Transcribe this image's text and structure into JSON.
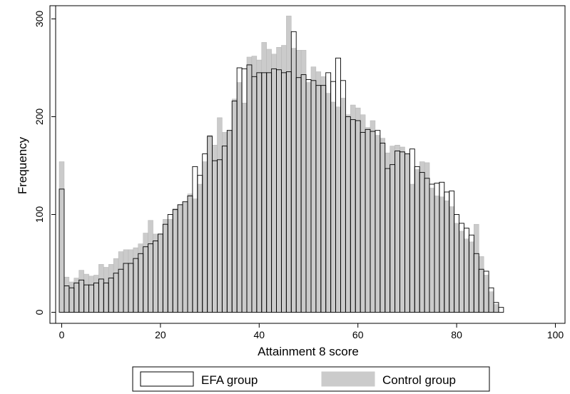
{
  "chart_data": {
    "type": "bar",
    "xlabel": "Attainment 8 score",
    "ylabel": "Frequency",
    "xlim": [
      -1,
      101
    ],
    "ylim": [
      0,
      305
    ],
    "xticks": [
      0,
      20,
      40,
      60,
      80,
      100
    ],
    "yticks": [
      0,
      100,
      200,
      300
    ],
    "bin_width": 1,
    "grid": false,
    "legend_position": "bottom",
    "x": [
      0,
      1,
      2,
      3,
      4,
      5,
      6,
      7,
      8,
      9,
      10,
      11,
      12,
      13,
      14,
      15,
      16,
      17,
      18,
      19,
      20,
      21,
      22,
      23,
      24,
      25,
      26,
      27,
      28,
      29,
      30,
      31,
      32,
      33,
      34,
      35,
      36,
      37,
      38,
      39,
      40,
      41,
      42,
      43,
      44,
      45,
      46,
      47,
      48,
      49,
      50,
      51,
      52,
      53,
      54,
      55,
      56,
      57,
      58,
      59,
      60,
      61,
      62,
      63,
      64,
      65,
      66,
      67,
      68,
      69,
      70,
      71,
      72,
      73,
      74,
      75,
      76,
      77,
      78,
      79,
      80,
      81,
      82,
      83,
      84,
      85,
      86,
      87,
      88,
      89
    ],
    "series": [
      {
        "name": "EFA group",
        "fill": "#ffffff",
        "values": [
          126,
          27,
          25,
          30,
          33,
          28,
          28,
          30,
          34,
          30,
          35,
          40,
          44,
          50,
          50,
          55,
          60,
          67,
          70,
          73,
          80,
          90,
          100,
          105,
          110,
          113,
          119,
          149,
          140,
          162,
          180,
          155,
          156,
          170,
          186,
          216,
          250,
          249,
          253,
          241,
          245,
          245,
          245,
          249,
          248,
          245,
          246,
          287,
          240,
          243,
          238,
          237,
          232,
          232,
          245,
          236,
          260,
          237,
          200,
          197,
          196,
          184,
          187,
          185,
          186,
          173,
          147,
          151,
          165,
          164,
          162,
          167,
          149,
          143,
          137,
          131,
          132,
          133,
          123,
          124,
          100,
          91,
          86,
          79,
          60,
          44,
          42,
          25,
          10,
          5
        ]
      },
      {
        "name": "Control group",
        "fill": "#cbcbcb",
        "values": [
          154,
          36,
          31,
          35,
          43,
          39,
          37,
          38,
          49,
          46,
          49,
          55,
          62,
          64,
          64,
          66,
          70,
          81,
          94,
          80,
          80,
          95,
          95,
          106,
          110,
          113,
          121,
          116,
          131,
          154,
          181,
          171,
          199,
          184,
          186,
          218,
          235,
          214,
          261,
          262,
          258,
          276,
          269,
          264,
          271,
          273,
          303,
          270,
          268,
          268,
          235,
          251,
          246,
          241,
          224,
          215,
          210,
          219,
          202,
          212,
          209,
          202,
          189,
          196,
          181,
          178,
          163,
          170,
          171,
          169,
          162,
          131,
          146,
          154,
          153,
          127,
          119,
          118,
          114,
          108,
          91,
          83,
          75,
          72,
          90,
          57,
          38,
          21,
          8,
          0
        ]
      }
    ]
  }
}
